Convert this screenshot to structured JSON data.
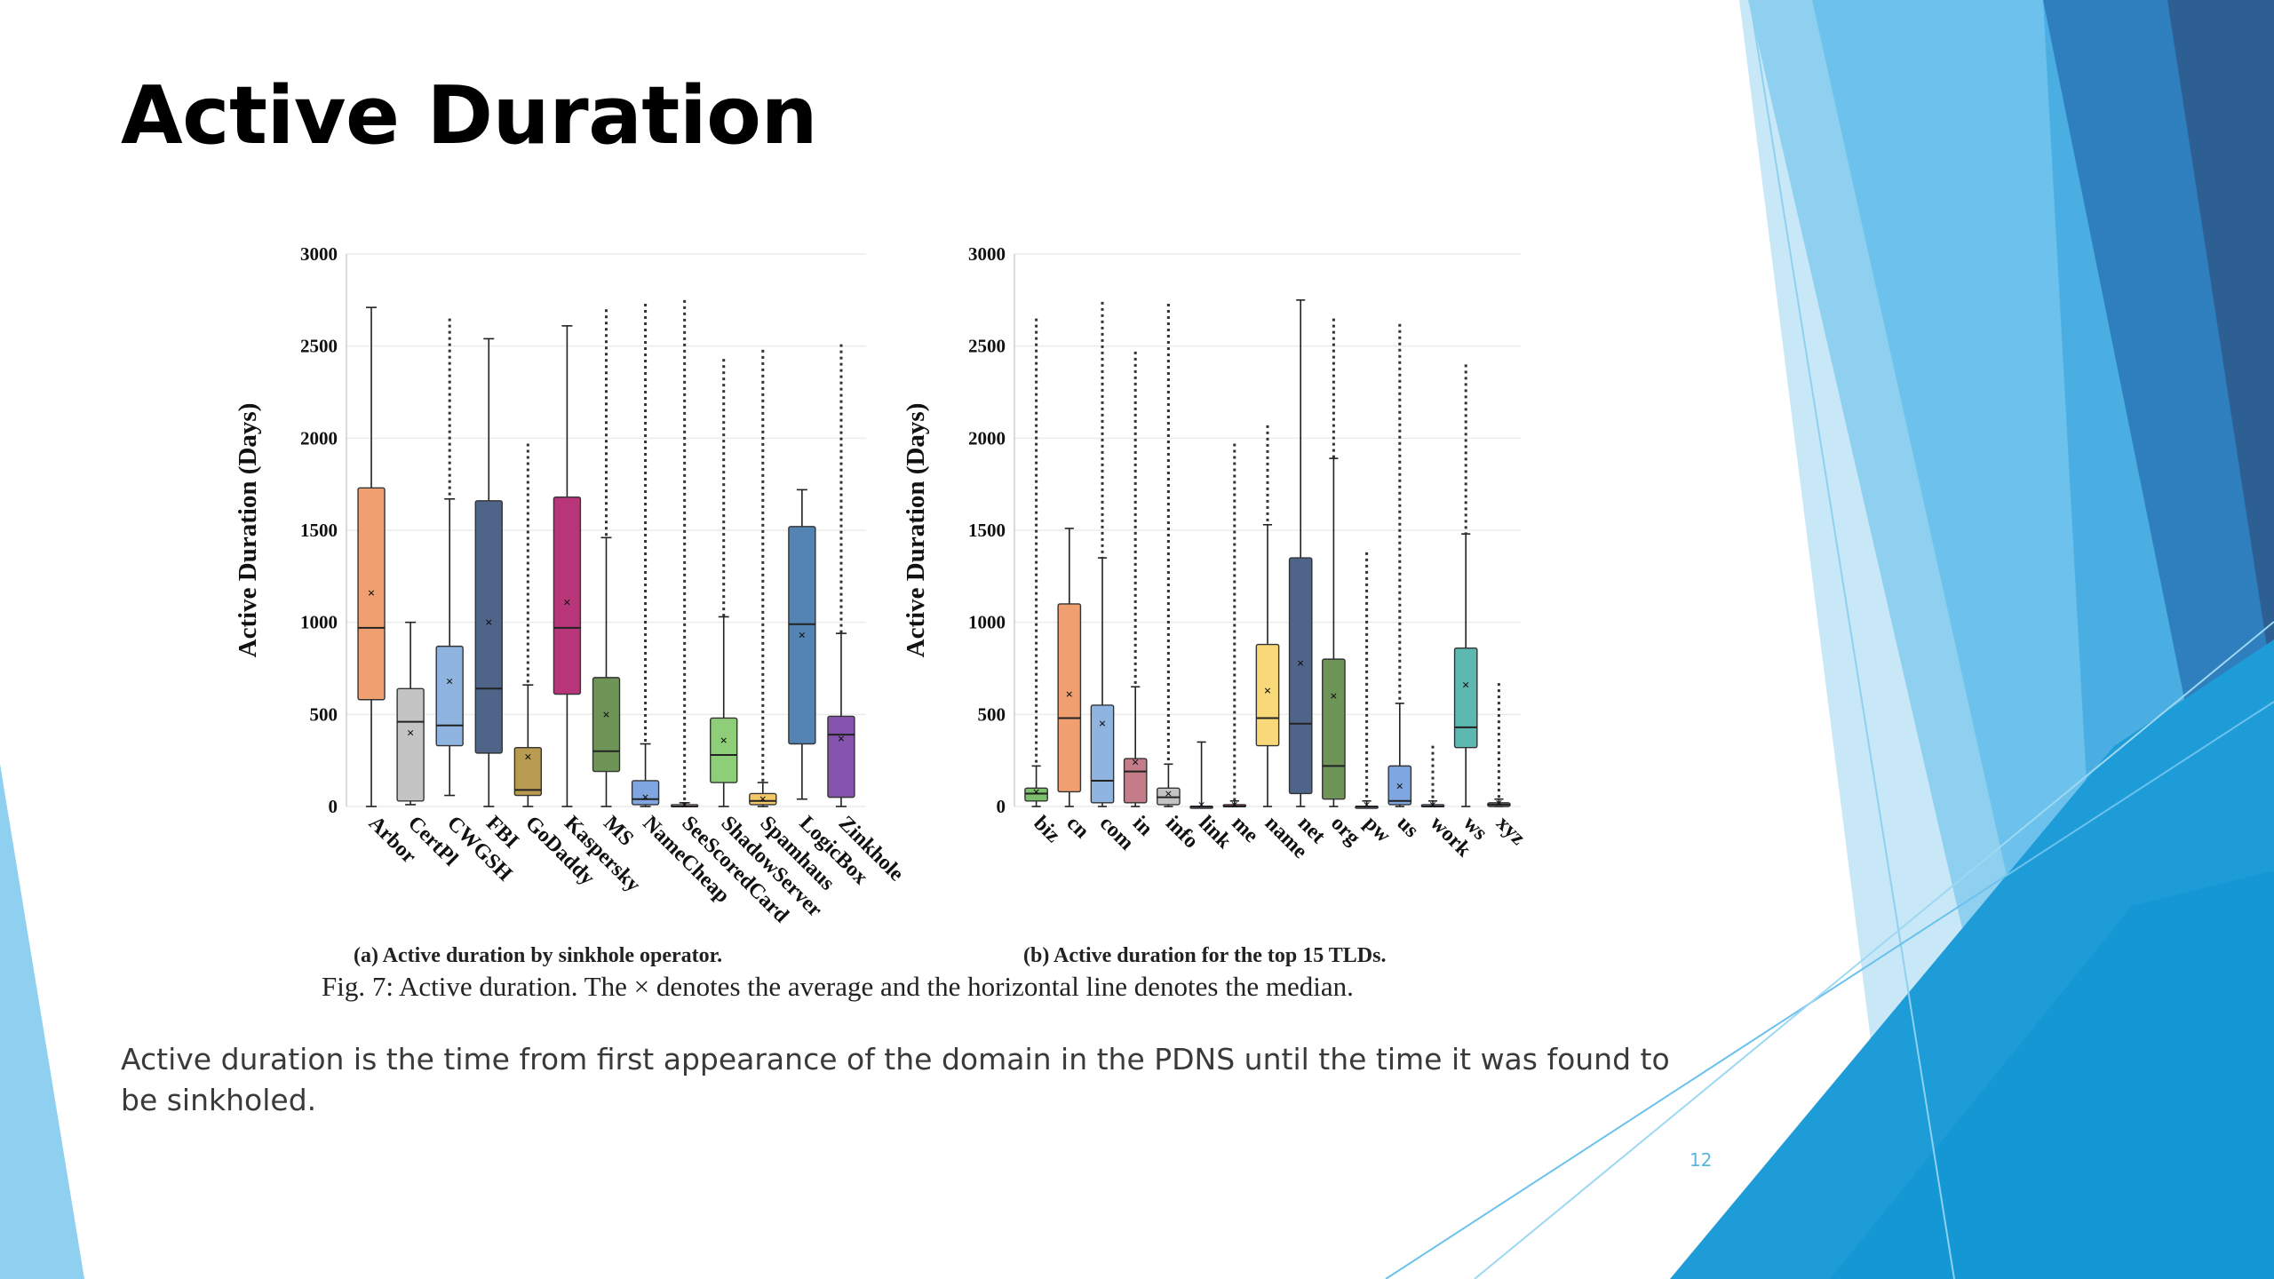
{
  "slide": {
    "title": "Active Duration",
    "subcaption_a": "(a) Active duration by sinkhole operator.",
    "subcaption_b": "(b) Active duration for the top 15 TLDs.",
    "figure_caption": "Fig. 7: Active duration. The × denotes the average and the horizontal line denotes the median.",
    "body_text": "Active duration is the time from first appearance of the domain in the PDNS until the time it was found to be sinkholed.",
    "slide_number": "12",
    "theme_colors": [
      "#1a9fd6",
      "#5ab9e8",
      "#8fd0f2",
      "#c2e6f7",
      "#1f6aa0",
      "#2d5f8e"
    ]
  },
  "chart_data": [
    {
      "type": "box",
      "title": "",
      "ylabel": "Active Duration (Days)",
      "xlabel": "",
      "ylim": [
        0,
        3000
      ],
      "yticks": [
        "0",
        "500",
        "1000",
        "1500",
        "2000",
        "2500",
        "3000"
      ],
      "grid": true,
      "categories": [
        "Arbor",
        "CertPl",
        "CWGSH",
        "FBI",
        "GoDaddy",
        "Kaspersky",
        "MS",
        "NameCheap",
        "SeeScoredCard",
        "ShadowServer",
        "Spamhaus",
        "LogicBox",
        "Zinkhole"
      ],
      "colors": [
        "#f0a070",
        "#c4c4c4",
        "#8fb4e0",
        "#4e6488",
        "#b89a50",
        "#b8357a",
        "#6e9458",
        "#7fa6e0",
        "#f0c8b4",
        "#8fce78",
        "#f4c868",
        "#5384b4",
        "#8654ae"
      ],
      "boxes": [
        {
          "whisker_low": 0,
          "q1": 580,
          "median": 970,
          "q3": 1730,
          "whisker_high": 2710,
          "mean": 1160,
          "outliers_up_to": null
        },
        {
          "whisker_low": 10,
          "q1": 30,
          "median": 460,
          "q3": 640,
          "whisker_high": 1000,
          "mean": 400,
          "outliers_up_to": null
        },
        {
          "whisker_low": 60,
          "q1": 330,
          "median": 440,
          "q3": 870,
          "whisker_high": 1670,
          "mean": 680,
          "outliers_up_to": 2650
        },
        {
          "whisker_low": 0,
          "q1": 290,
          "median": 640,
          "q3": 1660,
          "whisker_high": 2540,
          "mean": 1000,
          "outliers_up_to": null
        },
        {
          "whisker_low": 0,
          "q1": 60,
          "median": 90,
          "q3": 320,
          "whisker_high": 660,
          "mean": 270,
          "outliers_up_to": 1970
        },
        {
          "whisker_low": 0,
          "q1": 610,
          "median": 970,
          "q3": 1680,
          "whisker_high": 2610,
          "mean": 1110,
          "outliers_up_to": null
        },
        {
          "whisker_low": 0,
          "q1": 190,
          "median": 300,
          "q3": 700,
          "whisker_high": 1460,
          "mean": 500,
          "outliers_up_to": 2700
        },
        {
          "whisker_low": 0,
          "q1": 10,
          "median": 40,
          "q3": 140,
          "whisker_high": 340,
          "mean": 50,
          "outliers_up_to": 2730
        },
        {
          "whisker_low": 0,
          "q1": 0,
          "median": 0,
          "q3": 10,
          "whisker_high": 20,
          "mean": 10,
          "outliers_up_to": 2750
        },
        {
          "whisker_low": 0,
          "q1": 130,
          "median": 280,
          "q3": 480,
          "whisker_high": 1030,
          "mean": 360,
          "outliers_up_to": 2430
        },
        {
          "whisker_low": 0,
          "q1": 10,
          "median": 30,
          "q3": 70,
          "whisker_high": 130,
          "mean": 40,
          "outliers_up_to": 2480
        },
        {
          "whisker_low": 40,
          "q1": 340,
          "median": 990,
          "q3": 1520,
          "whisker_high": 1720,
          "mean": 930,
          "outliers_up_to": null
        },
        {
          "whisker_low": 0,
          "q1": 50,
          "median": 390,
          "q3": 490,
          "whisker_high": 940,
          "mean": 370,
          "outliers_up_to": 2510
        }
      ]
    },
    {
      "type": "box",
      "title": "",
      "ylabel": "Active Duration (Days)",
      "xlabel": "",
      "ylim": [
        0,
        3000
      ],
      "yticks": [
        "0",
        "500",
        "1000",
        "1500",
        "2000",
        "2500",
        "3000"
      ],
      "grid": true,
      "categories": [
        "biz",
        "cn",
        "com",
        "in",
        "info",
        "link",
        "me",
        "name",
        "net",
        "org",
        "pw",
        "us",
        "work",
        "ws",
        "xyz"
      ],
      "colors": [
        "#7dbf6a",
        "#f0a070",
        "#8fb4e0",
        "#c47c88",
        "#c4c4c4",
        "#6e8ab8",
        "#b8357a",
        "#f8d878",
        "#4e6488",
        "#6e9458",
        "#7fa6e0",
        "#7fa6e0",
        "#7fa6e0",
        "#5cb8b0",
        "#8f8f8f"
      ],
      "boxes": [
        {
          "whisker_low": 0,
          "q1": 30,
          "median": 70,
          "q3": 100,
          "whisker_high": 220,
          "mean": 80,
          "outliers_up_to": 2650
        },
        {
          "whisker_low": 0,
          "q1": 80,
          "median": 480,
          "q3": 1100,
          "whisker_high": 1510,
          "mean": 610,
          "outliers_up_to": null
        },
        {
          "whisker_low": 0,
          "q1": 20,
          "median": 140,
          "q3": 550,
          "whisker_high": 1350,
          "mean": 450,
          "outliers_up_to": 2740
        },
        {
          "whisker_low": 0,
          "q1": 20,
          "median": 190,
          "q3": 260,
          "whisker_high": 650,
          "mean": 240,
          "outliers_up_to": 2470
        },
        {
          "whisker_low": 0,
          "q1": 10,
          "median": 50,
          "q3": 100,
          "whisker_high": 230,
          "mean": 70,
          "outliers_up_to": 2730
        },
        {
          "whisker_low": 0,
          "q1": 0,
          "median": 0,
          "q3": 0,
          "whisker_high": 350,
          "mean": 10,
          "outliers_up_to": null
        },
        {
          "whisker_low": 0,
          "q1": 0,
          "median": 0,
          "q3": 10,
          "whisker_high": 30,
          "mean": 10,
          "outliers_up_to": 1970
        },
        {
          "whisker_low": 0,
          "q1": 330,
          "median": 480,
          "q3": 880,
          "whisker_high": 1530,
          "mean": 630,
          "outliers_up_to": 2070
        },
        {
          "whisker_low": 0,
          "q1": 70,
          "median": 450,
          "q3": 1350,
          "whisker_high": 2750,
          "mean": 780,
          "outliers_up_to": null
        },
        {
          "whisker_low": 0,
          "q1": 40,
          "median": 220,
          "q3": 800,
          "whisker_high": 1890,
          "mean": 600,
          "outliers_up_to": 2650
        },
        {
          "whisker_low": 0,
          "q1": 0,
          "median": 0,
          "q3": 0,
          "whisker_high": 30,
          "mean": 10,
          "outliers_up_to": 1380
        },
        {
          "whisker_low": 0,
          "q1": 10,
          "median": 30,
          "q3": 220,
          "whisker_high": 560,
          "mean": 110,
          "outliers_up_to": 2620
        },
        {
          "whisker_low": 0,
          "q1": 0,
          "median": 0,
          "q3": 10,
          "whisker_high": 30,
          "mean": 10,
          "outliers_up_to": 330
        },
        {
          "whisker_low": 0,
          "q1": 320,
          "median": 430,
          "q3": 860,
          "whisker_high": 1480,
          "mean": 660,
          "outliers_up_to": 2400
        },
        {
          "whisker_low": 0,
          "q1": 0,
          "median": 10,
          "q3": 20,
          "whisker_high": 40,
          "mean": 20,
          "outliers_up_to": 670
        }
      ]
    }
  ]
}
